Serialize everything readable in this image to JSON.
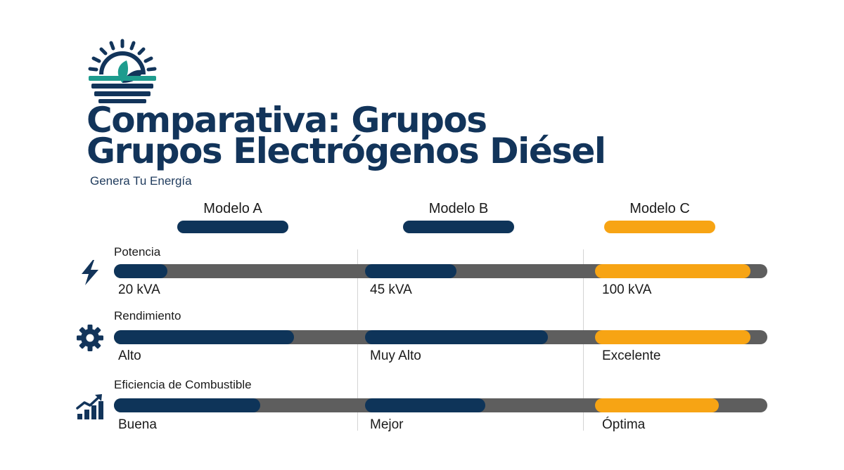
{
  "header": {
    "title_line1": "Comparativa: Grupos",
    "title_line2": "Grupos Electrógenos Diésel",
    "subtitle": "Genera Tu Energía",
    "logo_icon": "sun-leaf-logo-icon"
  },
  "colors": {
    "navy": "#0e3459",
    "orange": "#f7a414",
    "track": "#5e5e5e",
    "teal": "#1e9c8e"
  },
  "models": [
    {
      "label": "Modelo A",
      "color": "#0e3459"
    },
    {
      "label": "Modelo B",
      "color": "#0e3459"
    },
    {
      "label": "Modelo C",
      "color": "#f7a414"
    }
  ],
  "rows": [
    {
      "label": "Potencia",
      "icon": "lightning-bolt-icon",
      "values": [
        {
          "text": "20 kVA",
          "level": 0.22
        },
        {
          "text": "45 kVA",
          "level": 0.42
        },
        {
          "text": "100 kVA",
          "level": 0.9
        }
      ]
    },
    {
      "label": "Rendimiento",
      "icon": "gear-icon",
      "values": [
        {
          "text": "Alto",
          "level": 0.74
        },
        {
          "text": "Muy Alto",
          "level": 0.84
        },
        {
          "text": "Excelente",
          "level": 0.9
        }
      ]
    },
    {
      "label": "Eficiencia de Combustible",
      "icon": "growth-chart-icon",
      "values": [
        {
          "text": "Buena",
          "level": 0.6
        },
        {
          "text": "Mejor",
          "level": 0.55
        },
        {
          "text": "Óptima",
          "level": 0.72
        }
      ]
    }
  ]
}
